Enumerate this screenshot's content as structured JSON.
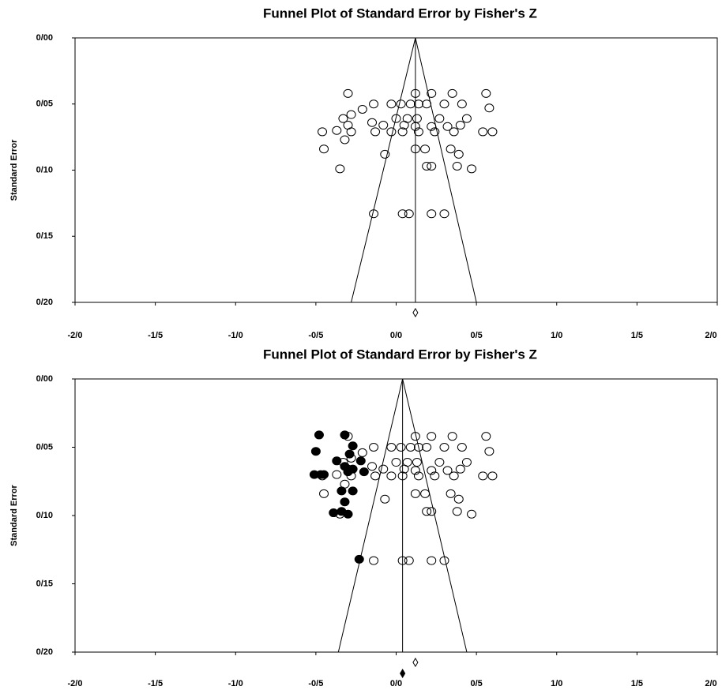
{
  "chart_data": [
    {
      "type": "scatter",
      "title": "Funnel Plot of Standard Error by Fisher's Z",
      "ylabel": "Standard Error",
      "xlim": [
        -2,
        2
      ],
      "ylim": [
        0,
        0.2
      ],
      "y_inverted": true,
      "xticks": [
        {
          "value": -2,
          "label": "-2/0"
        },
        {
          "value": -1.5,
          "label": "-1/5"
        },
        {
          "value": -1,
          "label": "-1/0"
        },
        {
          "value": -0.5,
          "label": "-0/5"
        },
        {
          "value": 0,
          "label": "0/0"
        },
        {
          "value": 0.5,
          "label": "0/5"
        },
        {
          "value": 1,
          "label": "1/0"
        },
        {
          "value": 1.5,
          "label": "1/5"
        },
        {
          "value": 2,
          "label": "2/0"
        }
      ],
      "yticks": [
        {
          "value": 0,
          "label": "0/00"
        },
        {
          "value": 0.05,
          "label": "0/05"
        },
        {
          "value": 0.1,
          "label": "0/10"
        },
        {
          "value": 0.15,
          "label": "0/15"
        },
        {
          "value": 0.2,
          "label": "0/20"
        }
      ],
      "funnel_x": [
        -0.28,
        0.12,
        0.5
      ],
      "funnel_y": [
        0.2,
        0,
        0.2
      ],
      "center_line": 0.12,
      "summary": 0.12,
      "series": [
        {
          "color": "#000000",
          "filled": false,
          "x": [
            -0.3,
            0.12,
            0.22,
            0.35,
            0.56,
            -0.14,
            -0.03,
            0.03,
            0.09,
            0.14,
            0.19,
            0.3,
            0.41,
            0.58,
            -0.21,
            -0.28,
            -0.33,
            0.0,
            0.07,
            0.13,
            0.27,
            0.44,
            -0.3,
            -0.15,
            -0.08,
            0.05,
            0.12,
            0.22,
            0.32,
            0.4,
            -0.46,
            -0.37,
            -0.28,
            -0.13,
            -0.03,
            0.04,
            0.14,
            0.24,
            0.36,
            0.54,
            0.6,
            -0.32,
            -0.45,
            -0.07,
            0.12,
            0.18,
            0.34,
            0.39,
            -0.35,
            0.19,
            0.22,
            0.38,
            0.47,
            -0.14,
            0.04,
            0.08,
            0.22,
            0.3
          ],
          "y": [
            0.042,
            0.042,
            0.042,
            0.042,
            0.042,
            0.05,
            0.05,
            0.05,
            0.05,
            0.05,
            0.05,
            0.05,
            0.05,
            0.053,
            0.054,
            0.058,
            0.061,
            0.061,
            0.061,
            0.061,
            0.061,
            0.061,
            0.066,
            0.064,
            0.066,
            0.066,
            0.067,
            0.067,
            0.067,
            0.066,
            0.071,
            0.07,
            0.071,
            0.071,
            0.071,
            0.071,
            0.071,
            0.071,
            0.071,
            0.071,
            0.071,
            0.077,
            0.084,
            0.088,
            0.084,
            0.084,
            0.084,
            0.088,
            0.099,
            0.097,
            0.097,
            0.097,
            0.099,
            0.133,
            0.133,
            0.133,
            0.133,
            0.133
          ]
        }
      ]
    },
    {
      "type": "scatter",
      "title": "Funnel Plot of Standard Error by Fisher's Z",
      "ylabel": "Standard Error",
      "xlim": [
        -2,
        2
      ],
      "ylim": [
        0,
        0.2
      ],
      "y_inverted": true,
      "xticks": [
        {
          "value": -2,
          "label": "-2/0"
        },
        {
          "value": -1.5,
          "label": "-1/5"
        },
        {
          "value": -1,
          "label": "-1/0"
        },
        {
          "value": -0.5,
          "label": "-0/5"
        },
        {
          "value": 0,
          "label": "0/0"
        },
        {
          "value": 0.5,
          "label": "0/5"
        },
        {
          "value": 1,
          "label": "1/0"
        },
        {
          "value": 1.5,
          "label": "1/5"
        },
        {
          "value": 2,
          "label": "2/0"
        }
      ],
      "yticks": [
        {
          "value": 0,
          "label": "0/00"
        },
        {
          "value": 0.05,
          "label": "0/05"
        },
        {
          "value": 0.1,
          "label": "0/10"
        },
        {
          "value": 0.15,
          "label": "0/15"
        },
        {
          "value": 0.2,
          "label": "0/20"
        }
      ],
      "funnel_x": [
        -0.36,
        0.04,
        0.44
      ],
      "funnel_y": [
        0.2,
        0,
        0.2
      ],
      "center_line": 0.04,
      "summary": 0.12,
      "adjusted_summary": 0.04,
      "series": [
        {
          "color": "#000000",
          "filled": false,
          "x": [
            -0.3,
            0.12,
            0.22,
            0.35,
            0.56,
            -0.14,
            -0.03,
            0.03,
            0.09,
            0.14,
            0.19,
            0.3,
            0.41,
            0.58,
            -0.21,
            -0.28,
            -0.33,
            0.0,
            0.07,
            0.13,
            0.27,
            0.44,
            -0.3,
            -0.15,
            -0.08,
            0.05,
            0.12,
            0.22,
            0.32,
            0.4,
            -0.46,
            -0.37,
            -0.28,
            -0.13,
            -0.03,
            0.04,
            0.14,
            0.24,
            0.36,
            0.54,
            0.6,
            -0.32,
            -0.45,
            -0.07,
            0.12,
            0.18,
            0.34,
            0.39,
            -0.35,
            0.19,
            0.22,
            0.38,
            0.47,
            -0.14,
            0.04,
            0.08,
            0.22,
            0.3
          ],
          "y": [
            0.042,
            0.042,
            0.042,
            0.042,
            0.042,
            0.05,
            0.05,
            0.05,
            0.05,
            0.05,
            0.05,
            0.05,
            0.05,
            0.053,
            0.054,
            0.058,
            0.061,
            0.061,
            0.061,
            0.061,
            0.061,
            0.061,
            0.066,
            0.064,
            0.066,
            0.066,
            0.067,
            0.067,
            0.067,
            0.066,
            0.071,
            0.07,
            0.071,
            0.071,
            0.071,
            0.071,
            0.071,
            0.071,
            0.071,
            0.071,
            0.071,
            0.077,
            0.084,
            0.088,
            0.084,
            0.084,
            0.084,
            0.088,
            0.099,
            0.097,
            0.097,
            0.097,
            0.099,
            0.133,
            0.133,
            0.133,
            0.133,
            0.133
          ]
        },
        {
          "color": "#000000",
          "filled": true,
          "x": [
            -0.48,
            -0.5,
            -0.51,
            -0.47,
            -0.45,
            -0.37,
            -0.32,
            -0.3,
            -0.27,
            -0.22,
            -0.2,
            -0.32,
            -0.34,
            -0.27,
            -0.32,
            -0.39,
            -0.34,
            -0.3,
            -0.23,
            -0.27,
            -0.29
          ],
          "y": [
            0.041,
            0.053,
            0.07,
            0.07,
            0.07,
            0.06,
            0.064,
            0.068,
            0.066,
            0.06,
            0.068,
            0.041,
            0.082,
            0.082,
            0.09,
            0.098,
            0.097,
            0.099,
            0.132,
            0.049,
            0.055
          ]
        }
      ]
    }
  ]
}
